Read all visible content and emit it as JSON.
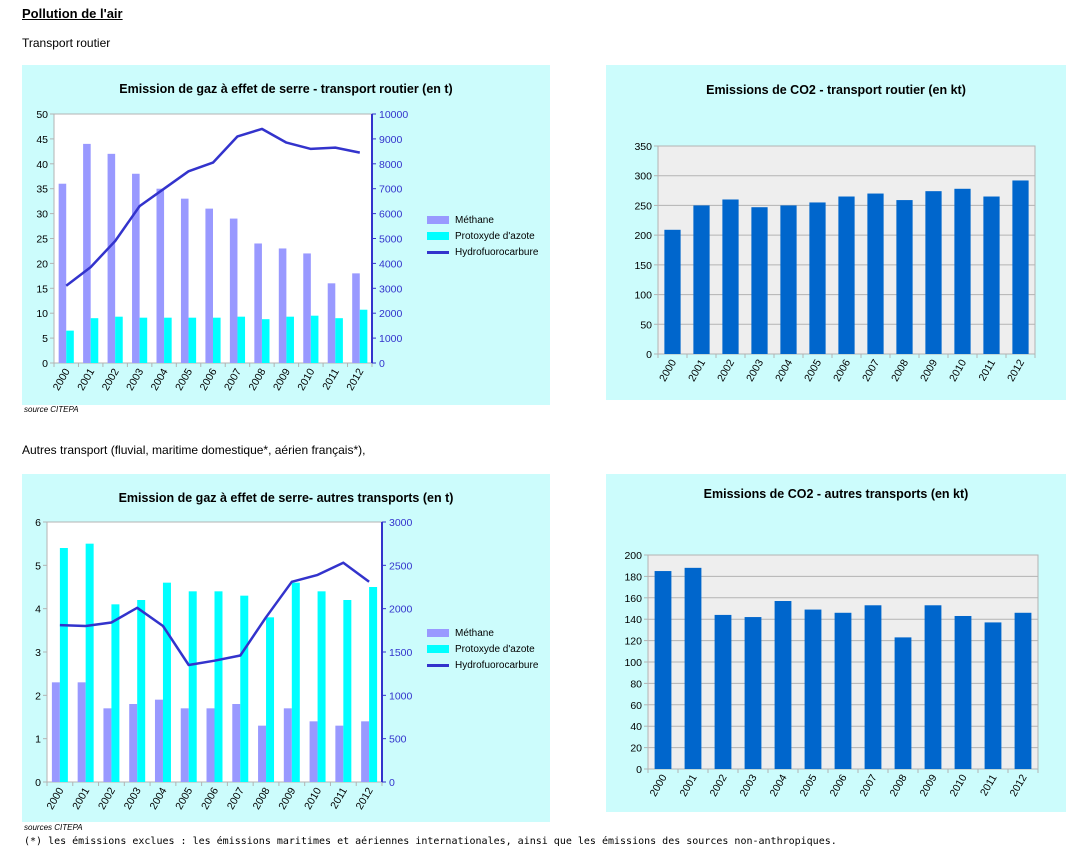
{
  "page": {
    "heading": "Pollution de l'air",
    "section1": "Transport routier",
    "section2": "Autres transport (fluvial, maritime domestique*, aérien français*),",
    "source1": "source CITEPA",
    "source2": "sources CITEPA",
    "footnote": "(*) les émissions exclues : les émissions maritimes et aériennes internationales, ainsi que les émissions des sources non-anthropiques."
  },
  "colors": {
    "panel_bg": "#ccfcfc",
    "plot_bg": "#eeeeee",
    "methane": "#9999ff",
    "protoxyde": "#00ffff",
    "hfc": "#3333cc",
    "co2": "#0066cc",
    "right_axis": "#3333cc"
  },
  "chart_data": [
    {
      "type": "bar",
      "title": "Emission de gaz à effet de serre - transport routier (en t)",
      "categories": [
        "2000",
        "2001",
        "2002",
        "2003",
        "2004",
        "2005",
        "2006",
        "2007",
        "2008",
        "2009",
        "2010",
        "2011",
        "2012"
      ],
      "ylim": [
        0,
        50
      ],
      "y_ticks": [
        "0",
        "5",
        "10",
        "15",
        "20",
        "25",
        "30",
        "35",
        "40",
        "45",
        "50"
      ],
      "y2lim": [
        0,
        10000
      ],
      "y2_ticks": [
        "0",
        "1000",
        "2000",
        "3000",
        "4000",
        "5000",
        "6000",
        "7000",
        "8000",
        "9000",
        "10000"
      ],
      "grid": false,
      "legend": "right",
      "series": [
        {
          "name": "Méthane",
          "type": "bar",
          "axis": "left",
          "values": [
            36,
            44,
            42,
            38,
            35,
            33,
            31,
            29,
            24,
            23,
            22,
            16,
            18
          ]
        },
        {
          "name": "Protoxyde d'azote",
          "type": "bar",
          "axis": "left",
          "values": [
            6.5,
            9,
            9.3,
            9.1,
            9.1,
            9.1,
            9.1,
            9.3,
            8.8,
            9.3,
            9.5,
            9,
            10.7
          ]
        },
        {
          "name": "Hydrofuorocarbure",
          "type": "line",
          "axis": "right",
          "values": [
            3100,
            3850,
            4900,
            6300,
            7000,
            7700,
            8050,
            9100,
            9400,
            8850,
            8600,
            8650,
            8450
          ]
        }
      ]
    },
    {
      "type": "bar",
      "title": "Emissions de CO2 - transport routier (en kt)",
      "categories": [
        "2000",
        "2001",
        "2002",
        "2003",
        "2004",
        "2005",
        "2006",
        "2007",
        "2008",
        "2009",
        "2010",
        "2011",
        "2012"
      ],
      "ylim": [
        0,
        350
      ],
      "y_ticks": [
        "0",
        "50",
        "100",
        "150",
        "200",
        "250",
        "300",
        "350"
      ],
      "grid": true,
      "series": [
        {
          "type": "bar",
          "values": [
            209,
            250,
            260,
            247,
            250,
            255,
            265,
            270,
            259,
            274,
            278,
            265,
            292
          ]
        }
      ]
    },
    {
      "type": "bar",
      "title": "Emission de gaz à effet de serre- autres transports (en t)",
      "categories": [
        "2000",
        "2001",
        "2002",
        "2003",
        "2004",
        "2005",
        "2006",
        "2007",
        "2008",
        "2009",
        "2010",
        "2011",
        "2012"
      ],
      "ylim": [
        0,
        6
      ],
      "y_ticks": [
        "0",
        "1",
        "2",
        "3",
        "4",
        "5",
        "6"
      ],
      "y2lim": [
        0,
        3000
      ],
      "y2_ticks": [
        "0",
        "500",
        "1000",
        "1500",
        "2000",
        "2500",
        "3000"
      ],
      "grid": false,
      "legend": "right",
      "series": [
        {
          "name": "Méthane",
          "type": "bar",
          "axis": "left",
          "values": [
            2.3,
            2.3,
            1.7,
            1.8,
            1.9,
            1.7,
            1.7,
            1.8,
            1.3,
            1.7,
            1.4,
            1.3,
            1.4
          ]
        },
        {
          "name": "Protoxyde d'azote",
          "type": "bar",
          "axis": "left",
          "values": [
            5.4,
            5.5,
            4.1,
            4.2,
            4.6,
            4.4,
            4.4,
            4.3,
            3.8,
            4.6,
            4.4,
            4.2,
            4.5
          ]
        },
        {
          "name": "Hydrofuorocarbure",
          "type": "line",
          "axis": "right",
          "values": [
            1810,
            1800,
            1840,
            2010,
            1800,
            1350,
            1400,
            1460,
            1900,
            2310,
            2390,
            2530,
            2310
          ]
        }
      ]
    },
    {
      "type": "bar",
      "title": "Emissions de CO2 - autres transports (en kt)",
      "categories": [
        "2000",
        "2001",
        "2002",
        "2003",
        "2004",
        "2005",
        "2006",
        "2007",
        "2008",
        "2009",
        "2010",
        "2011",
        "2012"
      ],
      "ylim": [
        0,
        200
      ],
      "y_ticks": [
        "0",
        "20",
        "40",
        "60",
        "80",
        "100",
        "120",
        "140",
        "160",
        "180",
        "200"
      ],
      "grid": true,
      "series": [
        {
          "type": "bar",
          "values": [
            185,
            188,
            144,
            142,
            157,
            149,
            146,
            153,
            123,
            153,
            143,
            137,
            146
          ]
        }
      ]
    }
  ]
}
